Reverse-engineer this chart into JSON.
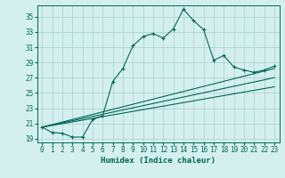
{
  "xlabel": "Humidex (Indice chaleur)",
  "bg_color": "#d4f0ee",
  "grid_color": "#b0d4d0",
  "line_color": "#006655",
  "xlim": [
    -0.5,
    23.5
  ],
  "ylim": [
    18.5,
    36.5
  ],
  "yticks": [
    19,
    21,
    23,
    25,
    27,
    29,
    31,
    33,
    35
  ],
  "xticks": [
    0,
    1,
    2,
    3,
    4,
    5,
    6,
    7,
    8,
    9,
    10,
    11,
    12,
    13,
    14,
    15,
    16,
    17,
    18,
    19,
    20,
    21,
    22,
    23
  ],
  "main_curve_x": [
    0,
    1,
    2,
    3,
    4,
    5,
    6,
    7,
    8,
    9,
    10,
    11,
    12,
    13,
    14,
    15,
    16,
    17,
    18,
    19,
    20,
    21,
    22,
    23
  ],
  "main_curve_y": [
    20.5,
    19.8,
    19.7,
    19.2,
    19.2,
    21.5,
    22.0,
    26.5,
    28.2,
    31.2,
    32.4,
    32.8,
    32.2,
    33.4,
    36.0,
    34.5,
    33.3,
    29.3,
    29.9,
    28.4,
    28.0,
    27.7,
    28.0,
    28.5
  ],
  "line1_x": [
    0,
    23
  ],
  "line1_y": [
    20.5,
    28.2
  ],
  "line2_x": [
    0,
    23
  ],
  "line2_y": [
    20.5,
    27.0
  ],
  "line3_x": [
    0,
    23
  ],
  "line3_y": [
    20.5,
    25.8
  ]
}
